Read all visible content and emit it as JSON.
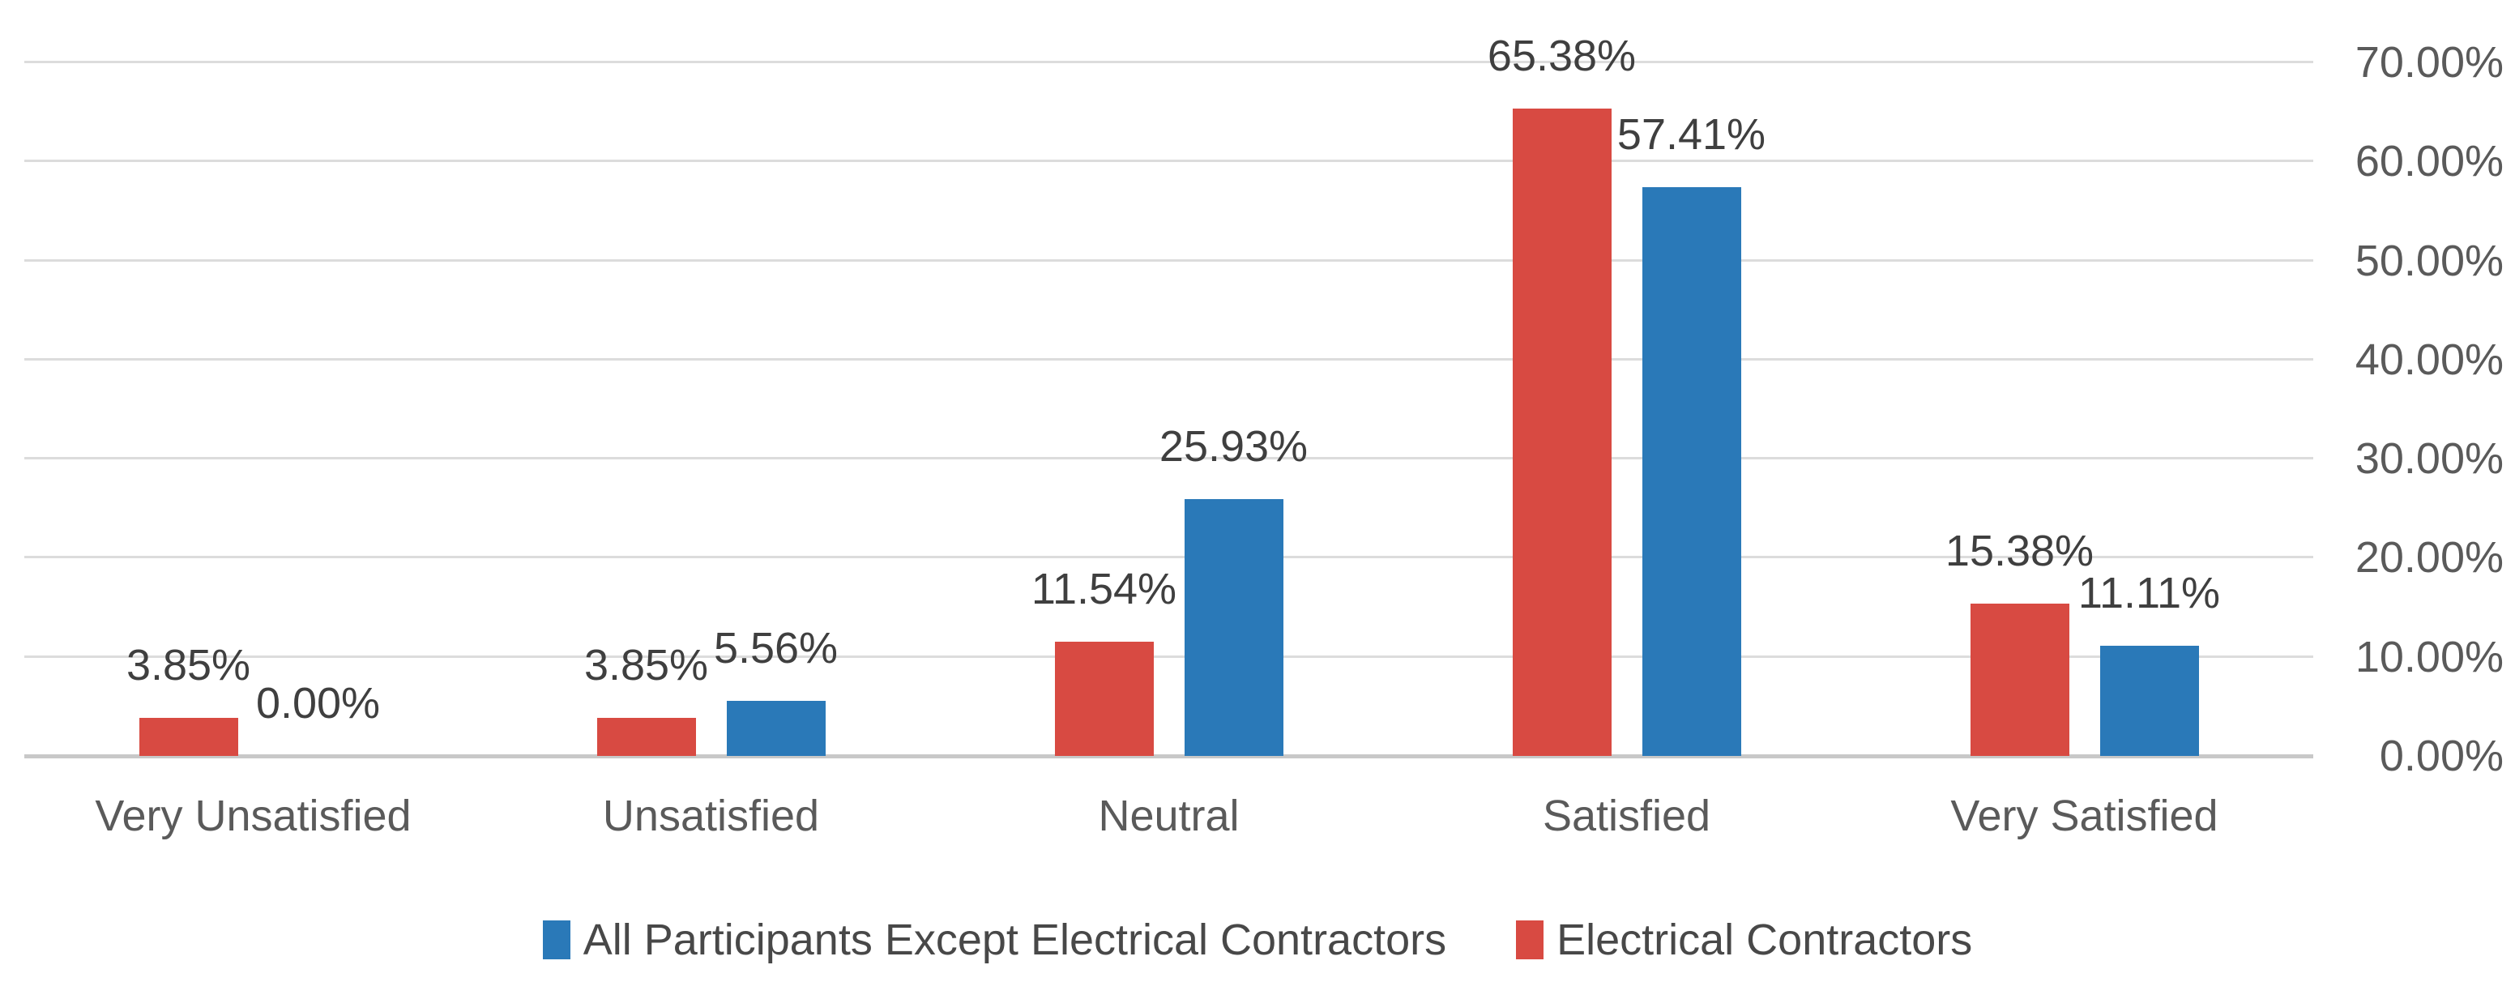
{
  "chart_data": {
    "type": "bar",
    "categories": [
      "Very Unsatisfied",
      "Unsatisfied",
      "Neutral",
      "Satisfied",
      "Very Satisfied"
    ],
    "series": [
      {
        "name": "Electrical Contractors",
        "color": "#d84a42",
        "position_in_pair": "left",
        "values": [
          3.85,
          3.85,
          11.54,
          65.38,
          15.38
        ],
        "labels": [
          "3.85%",
          "3.85%",
          "11.54%",
          "65.38%",
          "15.38%"
        ]
      },
      {
        "name": "All Participants Except Electrical Contractors",
        "color": "#2a79b8",
        "position_in_pair": "right",
        "values": [
          0.0,
          5.56,
          25.93,
          57.41,
          11.11
        ],
        "labels": [
          "0.00%",
          "5.56%",
          "25.93%",
          "57.41%",
          "11.11%"
        ]
      }
    ],
    "y_axis": {
      "side": "right",
      "min": 0,
      "max": 70,
      "step": 10,
      "tick_labels": [
        "70.00%",
        "60.00%",
        "50.00%",
        "40.00%",
        "30.00%",
        "20.00%",
        "10.00%",
        "0.00%"
      ]
    },
    "grid": true,
    "legend_position": "bottom",
    "legend": [
      {
        "label": "All Participants Except Electrical Contractors",
        "color": "#2a79b8"
      },
      {
        "label": "Electrical Contractors",
        "color": "#d84a42"
      }
    ],
    "colors": {
      "gridline": "#dcdcdc",
      "zero_line": "#c8c8c8",
      "tick_text": "#5a5a5a",
      "data_label_text": "#3f3f3f",
      "legend_text": "#484848"
    }
  }
}
